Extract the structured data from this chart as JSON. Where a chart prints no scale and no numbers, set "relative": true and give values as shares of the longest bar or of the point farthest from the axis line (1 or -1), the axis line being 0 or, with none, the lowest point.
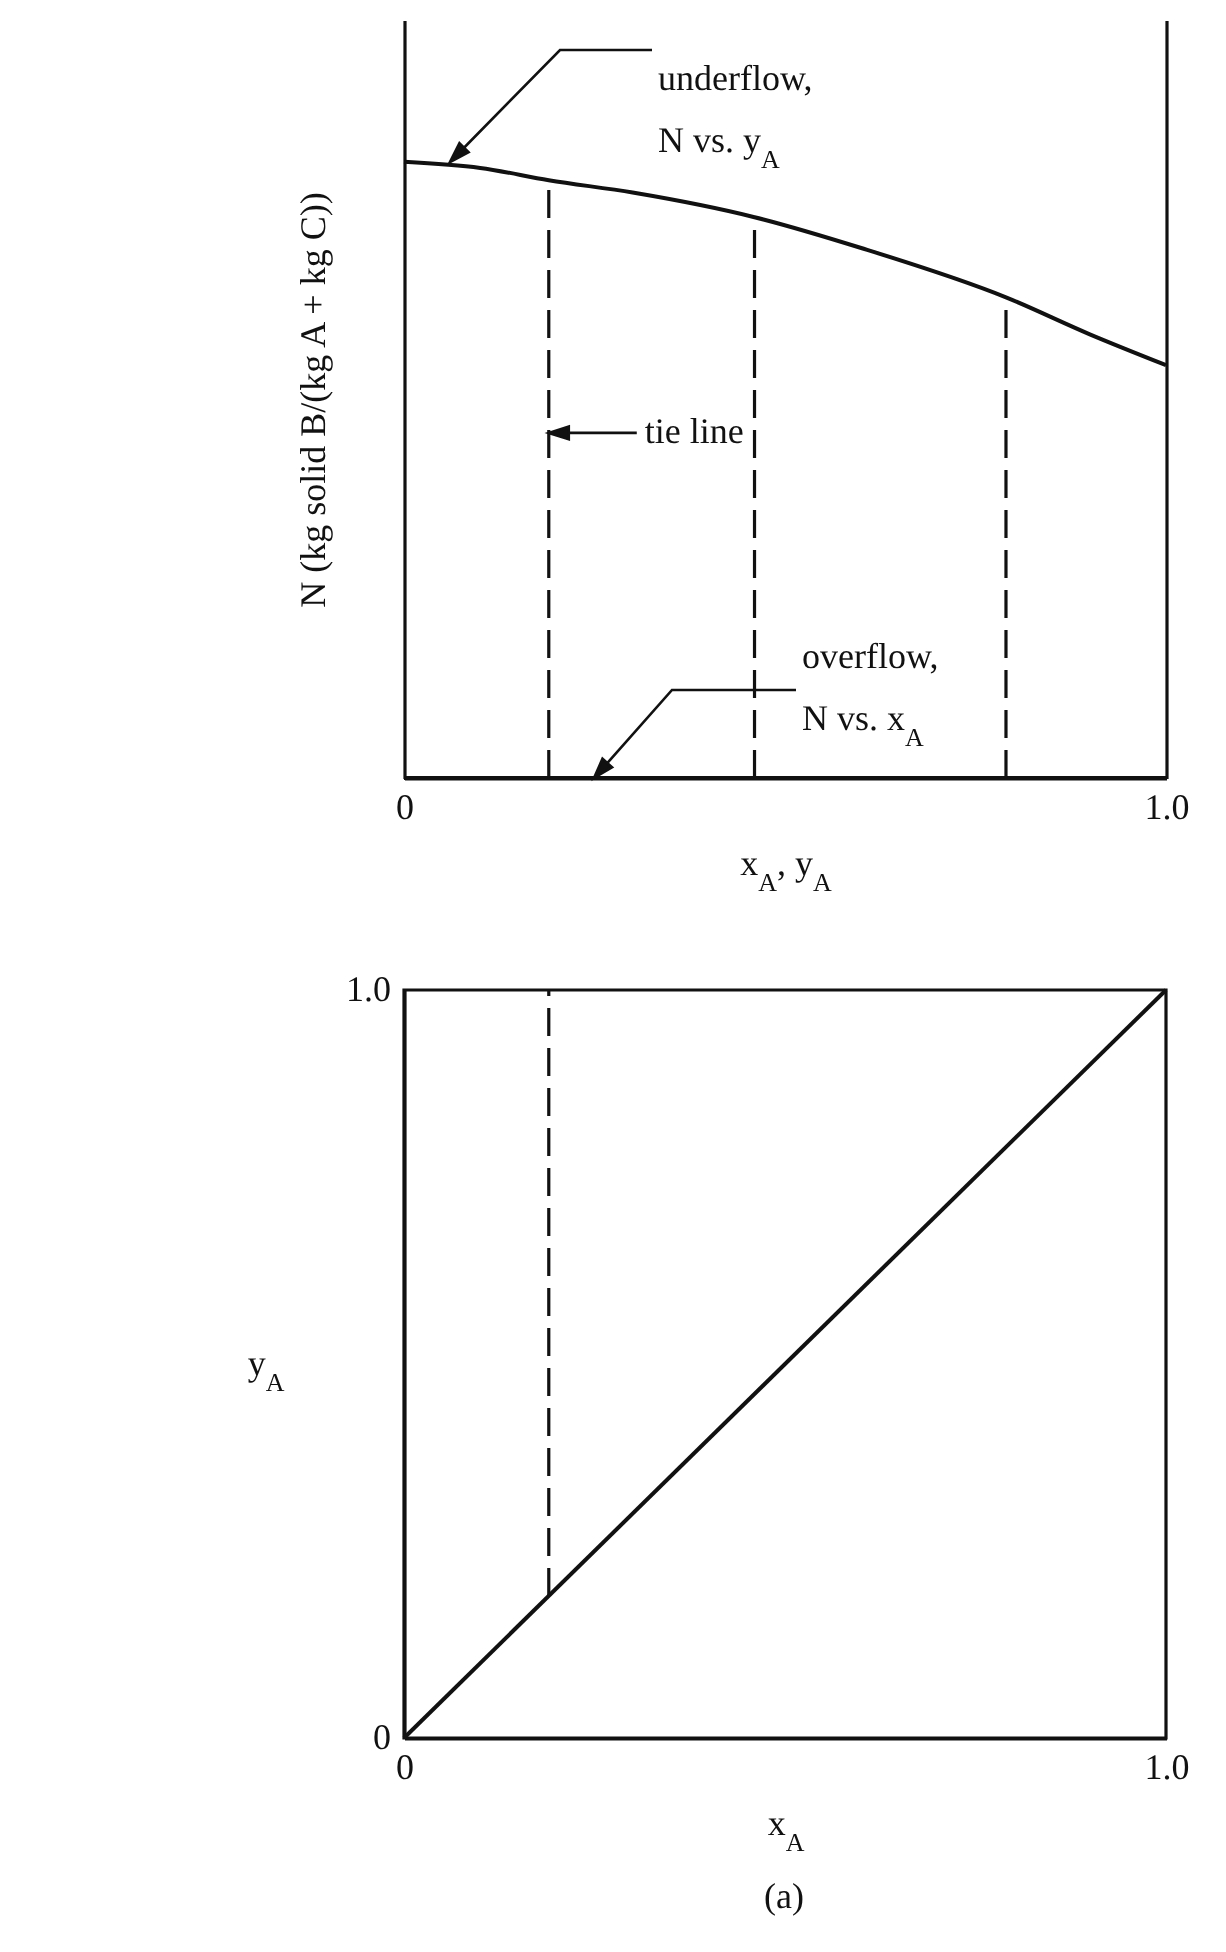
{
  "chart_data": [
    {
      "type": "line",
      "xlabel": "x$_{A}$, y$_{A}$",
      "ylabel": "N (kg solid B/(kg A + kg C))",
      "relative": true,
      "xlim": [
        0,
        1
      ],
      "xticks": [
        0,
        {
          "value": 1,
          "label": "1.0"
        }
      ],
      "series": [
        {
          "x": [
            0,
            0.1,
            0.19,
            0.3,
            0.46,
            0.6,
            0.79,
            0.9,
            1
          ],
          "values": [
            1,
            0.99,
            0.97,
            0.95,
            0.91,
            0.86,
            0.78,
            0.72,
            0.67
          ],
          "color": "#111111"
        },
        {
          "x": [
            0,
            1
          ],
          "values": [
            0,
            0
          ],
          "color": "#111111"
        },
        {
          "x": [
            0.19,
            0.19
          ],
          "values": [
            0,
            0.97
          ],
          "color": "#111111",
          "line_style": "dashed"
        },
        {
          "x": [
            0.46,
            0.46
          ],
          "values": [
            0,
            0.91
          ],
          "color": "#111111",
          "line_style": "dashed"
        },
        {
          "x": [
            0.79,
            0.79
          ],
          "values": [
            0,
            0.78
          ],
          "color": "#111111",
          "line_style": "dashed"
        }
      ],
      "annotations": [
        "underflow, N vs. y$_{A}$",
        {
          "text": "tie line",
          "x": 0.19,
          "y": 0.56
        },
        "overflow, N vs. x$_{A}$"
      ]
    },
    {
      "type": "line",
      "xlabel": "x$_{A}$",
      "ylabel": "y$_{A}$",
      "xlim": [
        0,
        1
      ],
      "ylim": [
        0,
        1
      ],
      "xticks": [
        0,
        {
          "value": 1,
          "label": "1.0"
        }
      ],
      "yticks": [
        0,
        {
          "value": 1,
          "label": "1.0"
        }
      ],
      "series": [
        {
          "x": [
            0,
            1
          ],
          "values": [
            0,
            1
          ],
          "color": "#111111"
        },
        {
          "x": [
            0.19,
            0.19
          ],
          "values": [
            0.19,
            1
          ],
          "color": "#111111",
          "line_style": "dashed"
        }
      ],
      "annotations": [
        "(a)"
      ]
    }
  ]
}
